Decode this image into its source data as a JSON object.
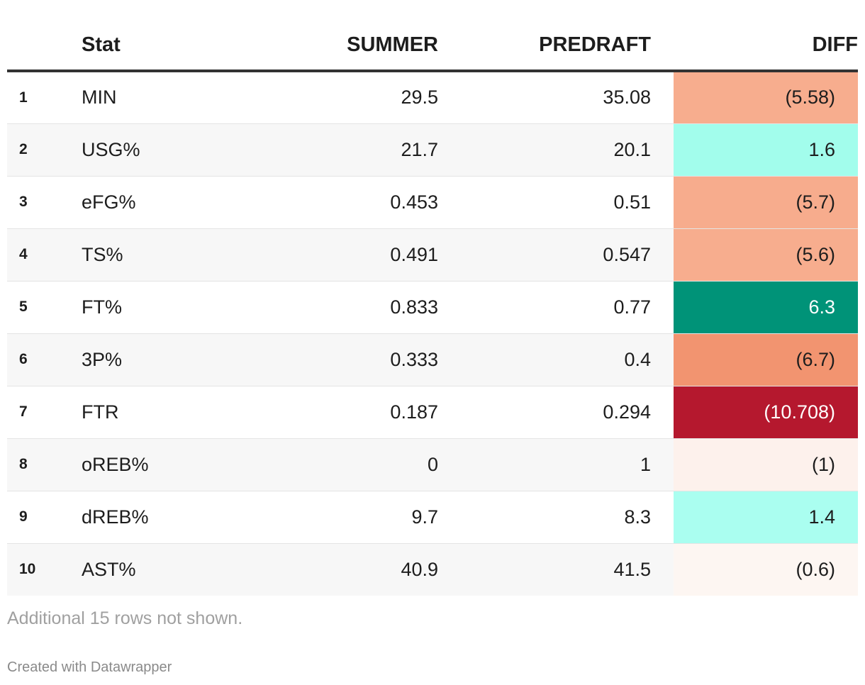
{
  "chart_data": {
    "type": "table",
    "columns": [
      "",
      "Stat",
      "SUMMER",
      "PREDRAFT",
      "DIFF"
    ],
    "rows": [
      {
        "rank": "1",
        "stat": "MIN",
        "summer": "29.5",
        "predraft": "35.08",
        "diff": "(5.58)",
        "diff_value": -5.58,
        "diff_color": "#f7ad8e",
        "diff_text_color": "#1d1d1d"
      },
      {
        "rank": "2",
        "stat": "USG%",
        "summer": "21.7",
        "predraft": "20.1",
        "diff": "1.6",
        "diff_value": 1.6,
        "diff_color": "#a2fdec",
        "diff_text_color": "#1d1d1d"
      },
      {
        "rank": "3",
        "stat": "eFG%",
        "summer": "0.453",
        "predraft": "0.51",
        "diff": "(5.7)",
        "diff_value": -5.7,
        "diff_color": "#f7ac8d",
        "diff_text_color": "#1d1d1d"
      },
      {
        "rank": "4",
        "stat": "TS%",
        "summer": "0.491",
        "predraft": "0.547",
        "diff": "(5.6)",
        "diff_value": -5.6,
        "diff_color": "#f7ad8e",
        "diff_text_color": "#1d1d1d"
      },
      {
        "rank": "5",
        "stat": "FT%",
        "summer": "0.833",
        "predraft": "0.77",
        "diff": "6.3",
        "diff_value": 6.3,
        "diff_color": "#009378",
        "diff_text_color": "#ffffff"
      },
      {
        "rank": "6",
        "stat": "3P%",
        "summer": "0.333",
        "predraft": "0.4",
        "diff": "(6.7)",
        "diff_value": -6.7,
        "diff_color": "#f29470",
        "diff_text_color": "#1d1d1d"
      },
      {
        "rank": "7",
        "stat": "FTR",
        "summer": "0.187",
        "predraft": "0.294",
        "diff": "(10.708)",
        "diff_value": -10.708,
        "diff_color": "#b5182e",
        "diff_text_color": "#ffffff"
      },
      {
        "rank": "8",
        "stat": "oREB%",
        "summer": "0",
        "predraft": "1",
        "diff": "(1)",
        "diff_value": -1,
        "diff_color": "#fdf1ec",
        "diff_text_color": "#1d1d1d"
      },
      {
        "rank": "9",
        "stat": "dREB%",
        "summer": "9.7",
        "predraft": "8.3",
        "diff": "1.4",
        "diff_value": 1.4,
        "diff_color": "#aafef0",
        "diff_text_color": "#1d1d1d"
      },
      {
        "rank": "10",
        "stat": "AST%",
        "summer": "40.9",
        "predraft": "41.5",
        "diff": "(0.6)",
        "diff_value": -0.6,
        "diff_color": "#fdf6f2",
        "diff_text_color": "#1d1d1d"
      }
    ]
  },
  "header": {
    "rank": "",
    "stat": "Stat",
    "summer": "SUMMER",
    "predraft": "PREDRAFT",
    "diff": "DIFF"
  },
  "footer": {
    "note": "Additional 15 rows not shown.",
    "credit": "Created with Datawrapper"
  }
}
